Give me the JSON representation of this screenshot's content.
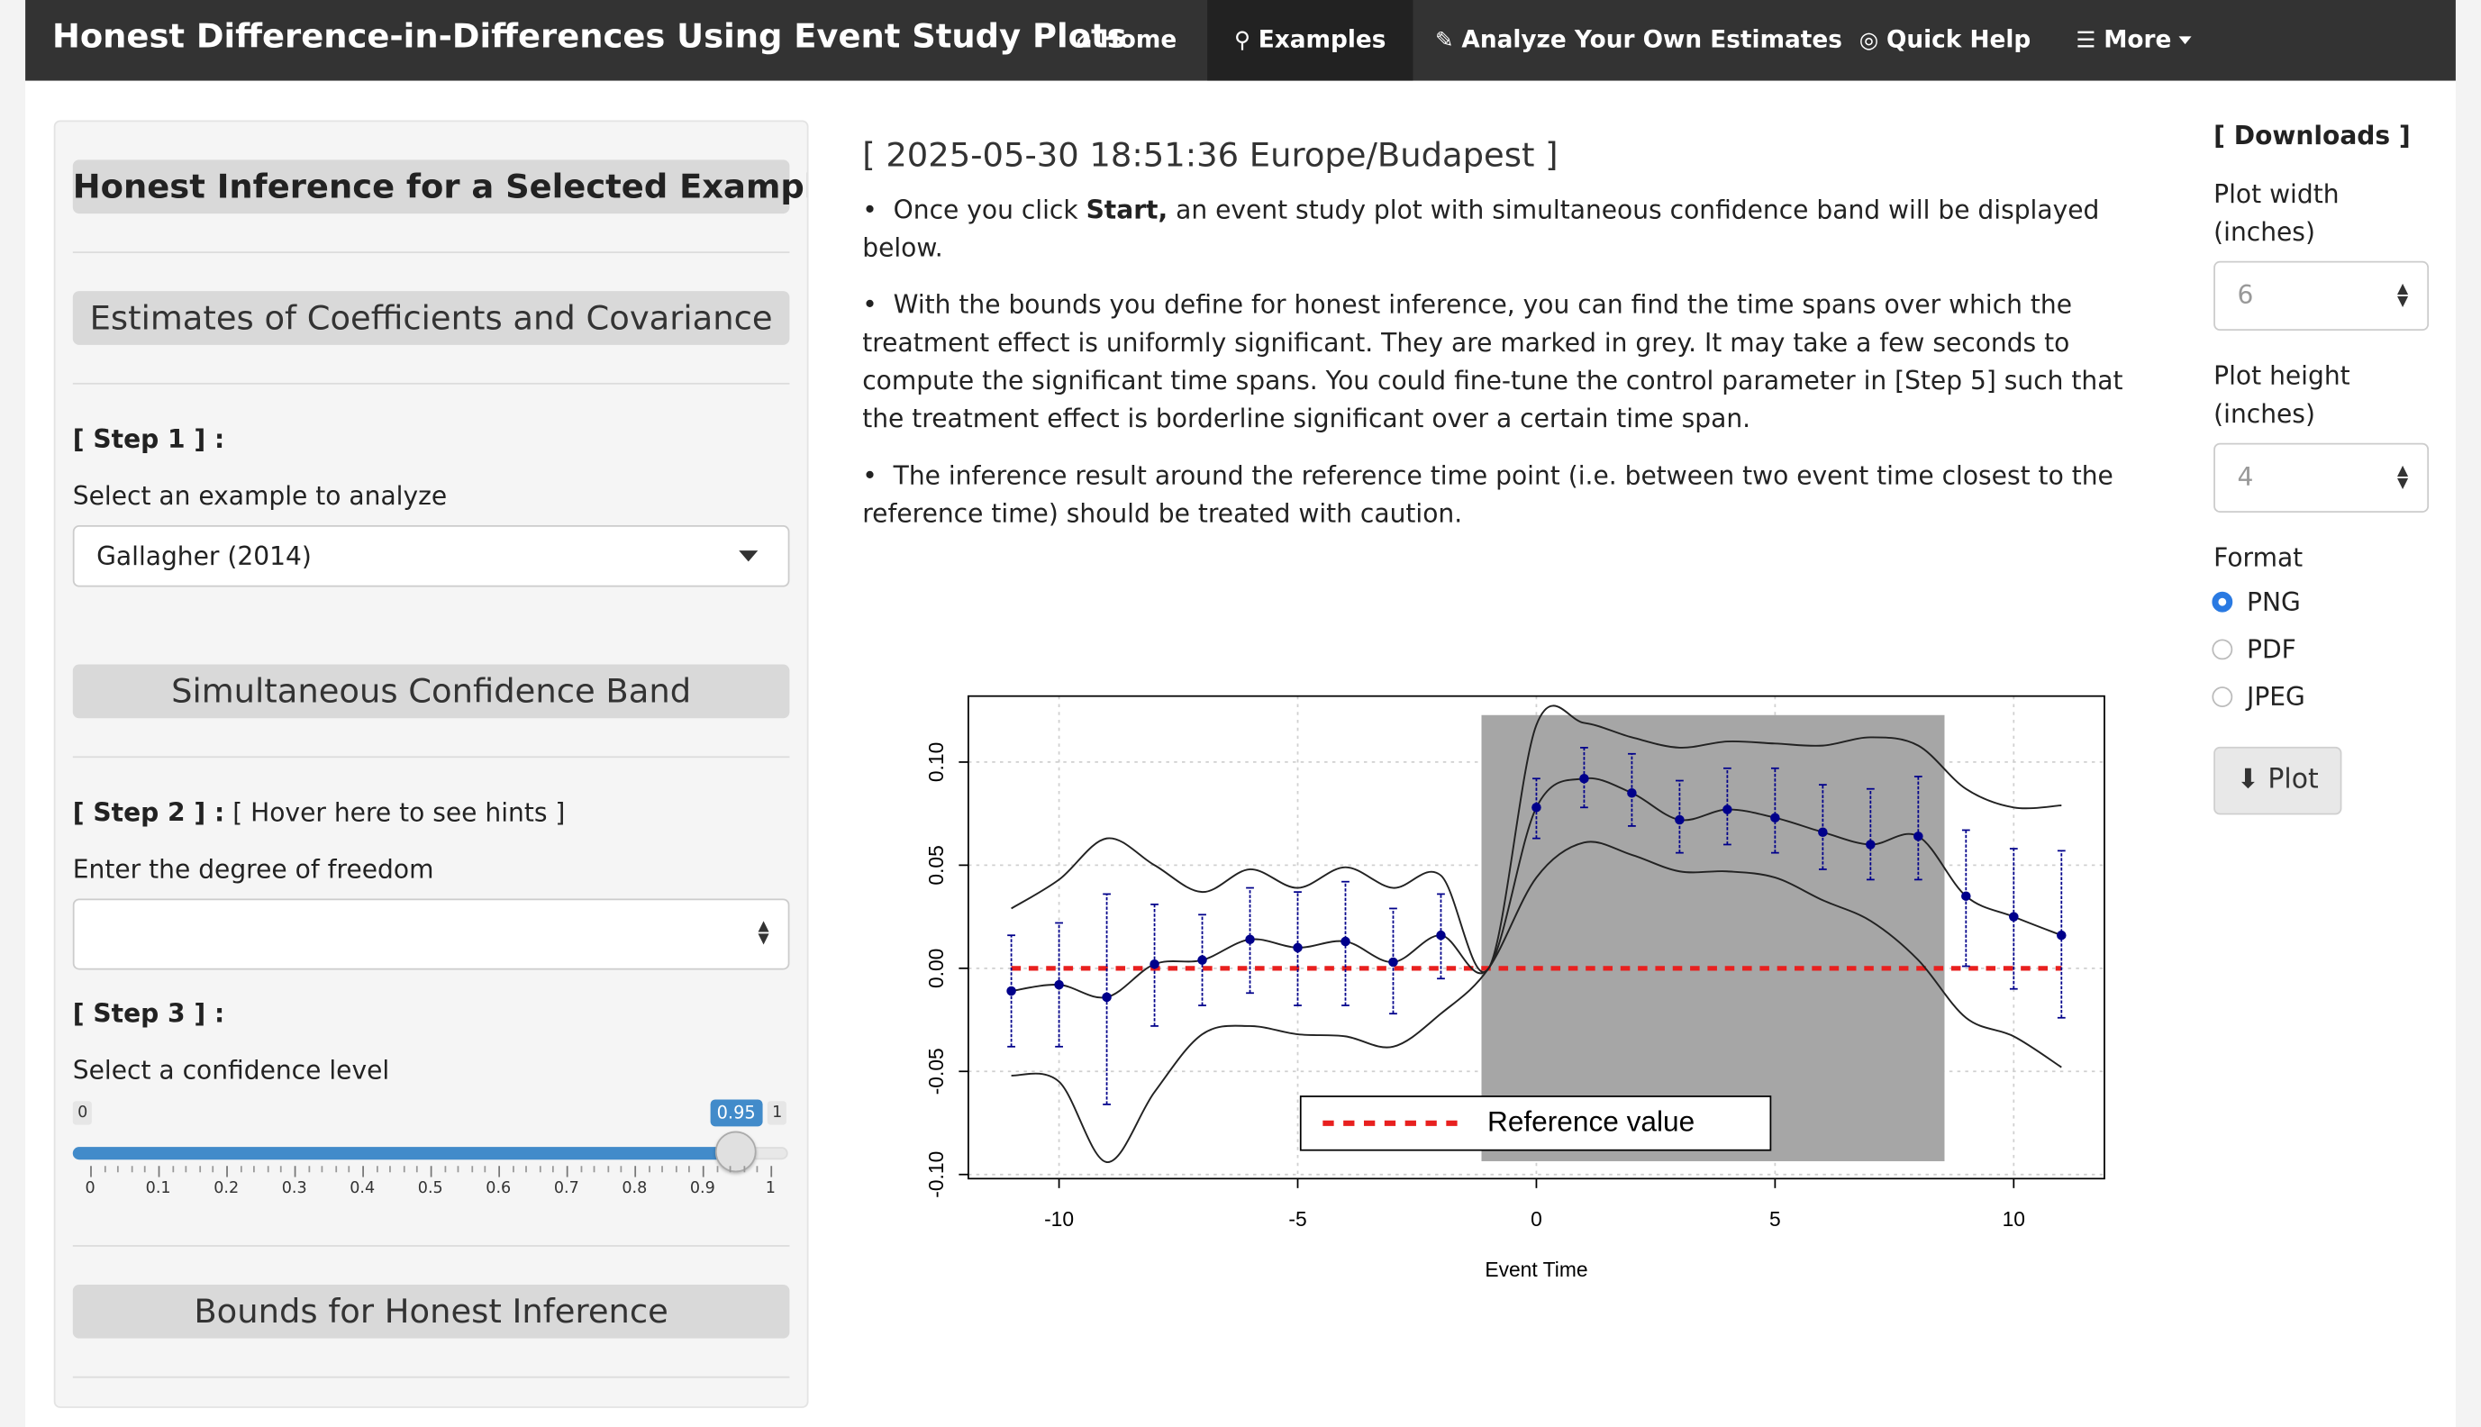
{
  "navbar": {
    "brand": "Honest Difference-in-Differences Using Event Study Plots",
    "items": [
      {
        "label": "Home",
        "icon": "home-icon"
      },
      {
        "label": "Examples",
        "icon": "search-icon"
      },
      {
        "label": "Analyze Your Own Estimates",
        "icon": "edit-icon"
      },
      {
        "label": "Quick Help",
        "icon": "compass-icon"
      },
      {
        "label": "More",
        "icon": "list-icon"
      }
    ],
    "active_index": 1
  },
  "sidebar": {
    "title": "Honest Inference for a Selected Example",
    "section1": "Estimates of Coefficients and Covariance",
    "step1": "[ Step 1 ] :",
    "step1_label": "Select an example to analyze",
    "example_selected": "Gallagher (2014)",
    "section2": "Simultaneous Confidence Band",
    "step2": "[ Step 2 ] :",
    "step2_hint": "[ Hover here to see hints ]",
    "df_label": "Enter the degree of freedom",
    "df_value": "",
    "step3": "[ Step 3 ] :",
    "conf_label": "Select a confidence level",
    "slider": {
      "min": "0",
      "max": "1",
      "value": "0.95",
      "fraction": 0.95,
      "tick_labels": [
        "0",
        "0.1",
        "0.2",
        "0.3",
        "0.4",
        "0.5",
        "0.6",
        "0.7",
        "0.8",
        "0.9",
        "1"
      ]
    },
    "section3": "Bounds for Honest Inference"
  },
  "main": {
    "timestamp": "[ 2025-05-30 18:51:36 Europe/Budapest ]",
    "bullet1_pre": "Once you click ",
    "bullet1_bold": "Start,",
    "bullet1_post": " an event study plot with simultaneous confidence band will be displayed below.",
    "bullet2": "With the bounds you define for honest inference, you can find the time spans over which the treatment effect is uniformly significant. They are marked in grey. It may take a few seconds to compute the significant time spans. You could fine-tune the control parameter in [Step 5] such that the treatment effect is borderline significant over a certain time span.",
    "bullet3": "The inference result around the reference time point (i.e. between two event time closest to the reference time) should be treated with caution."
  },
  "chart_data": {
    "type": "line",
    "xlabel": "Event Time",
    "ylabel": "",
    "x_ticks": [
      "-10",
      "-5",
      "0",
      "5",
      "10"
    ],
    "y_ticks": [
      "-0.10",
      "-0.05",
      "0.00",
      "0.05",
      "0.10"
    ],
    "xlim": [
      -11.9,
      11.9
    ],
    "ylim": [
      -0.102,
      0.132
    ],
    "grid": true,
    "legend": {
      "placement": "bottom-center",
      "entries": [
        "Reference value"
      ]
    },
    "reference_value": 0,
    "significant_span": [
      -1.15,
      8.55
    ],
    "colors": {
      "points": "#00008b",
      "reference": "#e8201f",
      "band": "#222222",
      "shade": "#a6a6a6"
    },
    "x": [
      -11,
      -10,
      -9,
      -8,
      -7,
      -6,
      -5,
      -4,
      -3,
      -2,
      -1,
      0,
      1,
      2,
      3,
      4,
      5,
      6,
      7,
      8,
      9,
      10,
      11
    ],
    "estimate": [
      -0.011,
      -0.008,
      -0.014,
      0.002,
      0.004,
      0.014,
      0.01,
      0.013,
      0.003,
      0.016,
      0.0,
      0.078,
      0.092,
      0.085,
      0.072,
      0.077,
      0.073,
      0.066,
      0.06,
      0.064,
      0.035,
      0.025,
      0.016
    ],
    "pointwise_lower": [
      -0.038,
      -0.038,
      -0.066,
      -0.028,
      -0.018,
      -0.012,
      -0.018,
      -0.018,
      -0.022,
      -0.005,
      0.0,
      0.063,
      0.078,
      0.069,
      0.056,
      0.06,
      0.056,
      0.048,
      0.043,
      0.043,
      0.001,
      -0.01,
      -0.024
    ],
    "pointwise_upper": [
      0.016,
      0.022,
      0.036,
      0.031,
      0.026,
      0.039,
      0.037,
      0.042,
      0.029,
      0.036,
      0.0,
      0.092,
      0.107,
      0.104,
      0.091,
      0.097,
      0.097,
      0.089,
      0.087,
      0.093,
      0.067,
      0.058,
      0.057
    ],
    "band_upper": [
      0.029,
      0.043,
      0.063,
      0.05,
      0.037,
      0.048,
      0.039,
      0.049,
      0.039,
      0.045,
      0.0,
      0.118,
      0.119,
      0.112,
      0.107,
      0.11,
      0.109,
      0.108,
      0.112,
      0.108,
      0.087,
      0.078,
      0.079
    ],
    "band_lower": [
      -0.052,
      -0.055,
      -0.094,
      -0.06,
      -0.032,
      -0.028,
      -0.032,
      -0.033,
      -0.038,
      -0.022,
      0.0,
      0.044,
      0.061,
      0.055,
      0.047,
      0.047,
      0.044,
      0.033,
      0.023,
      0.004,
      -0.024,
      -0.033,
      -0.048
    ]
  },
  "downloads": {
    "title": "[ Downloads ]",
    "width_label": "Plot width (inches)",
    "width_value": "6",
    "height_label": "Plot height (inches)",
    "height_value": "4",
    "format_label": "Format",
    "formats": [
      "PNG",
      "PDF",
      "JPEG"
    ],
    "selected_format": "PNG",
    "plot_button": "Plot",
    "plot_button_icon": "download-icon"
  }
}
